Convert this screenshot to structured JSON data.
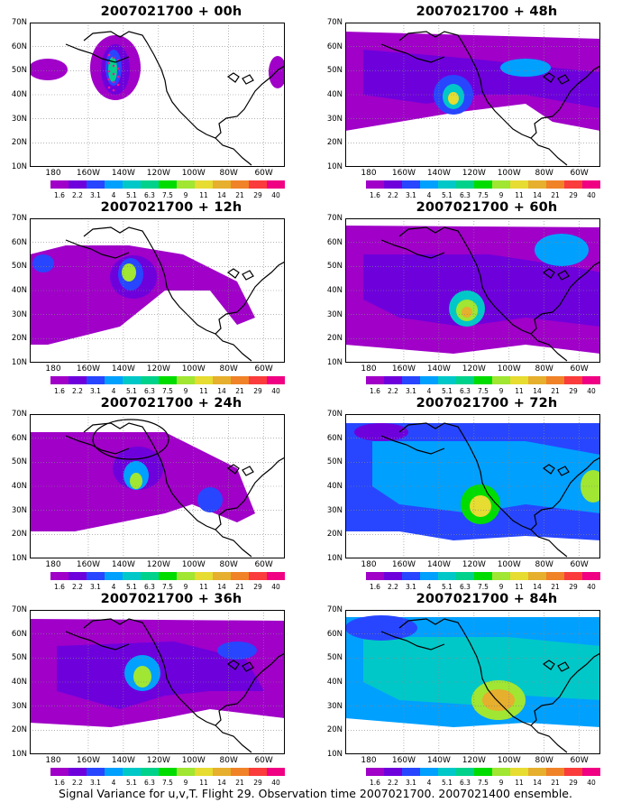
{
  "panels": [
    {
      "id": "00h",
      "title": "2007021700 + 00h"
    },
    {
      "id": "48h",
      "title": "2007021700 + 48h"
    },
    {
      "id": "12h",
      "title": "2007021700 + 12h"
    },
    {
      "id": "60h",
      "title": "2007021700 + 60h"
    },
    {
      "id": "24h",
      "title": "2007021700 + 24h"
    },
    {
      "id": "72h",
      "title": "2007021700 + 72h"
    },
    {
      "id": "36h",
      "title": "2007021700 + 36h"
    },
    {
      "id": "84h",
      "title": "2007021700 + 84h"
    }
  ],
  "latitude_labels": [
    "70N",
    "60N",
    "50N",
    "40N",
    "30N",
    "20N",
    "10N"
  ],
  "longitude_labels": [
    "180",
    "160W",
    "140W",
    "120W",
    "100W",
    "80W",
    "60W"
  ],
  "colorbar": {
    "levels": [
      "1.6",
      "2.2",
      "3.1",
      "4",
      "5.1",
      "6.3",
      "7.5",
      "9",
      "11",
      "14",
      "21",
      "29",
      "40"
    ],
    "colors": [
      "#a000c8",
      "#6e00dc",
      "#2846ff",
      "#00a0ff",
      "#00c8c8",
      "#00d28c",
      "#00dc00",
      "#a0e632",
      "#e6dc32",
      "#e6af2d",
      "#f08228",
      "#fa3c3c",
      "#f00082"
    ]
  },
  "caption": "Signal Variance for u,v,T. Flight 29. Observation time 2007021700. 2007021400 ensemble."
}
